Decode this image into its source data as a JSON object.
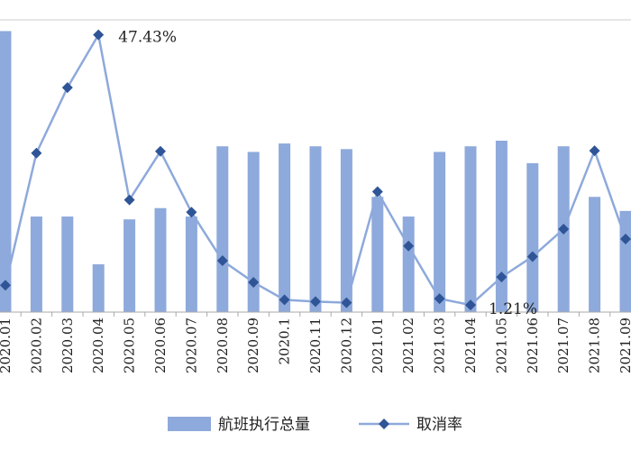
{
  "chart_data": {
    "type": "bar+line",
    "categories": [
      "2020.01",
      "2020.02",
      "2020.03",
      "2020.04",
      "2020.05",
      "2020.06",
      "2020.07",
      "2020.08",
      "2020.09",
      "2020.1",
      "2020.11",
      "2020.12",
      "2021.01",
      "2021.02",
      "2021.03",
      "2021.04",
      "2021.05",
      "2021.06",
      "2021.07",
      "2021.08",
      "2021.09"
    ],
    "series": [
      {
        "name": "航班执行总量",
        "type": "bar",
        "axis": "left",
        "color": "#8EA9DB",
        "values": [
          100,
          34,
          34,
          17,
          33,
          37,
          34,
          59,
          57,
          60,
          59,
          58,
          41,
          34,
          57,
          59,
          61,
          53,
          59,
          41,
          36
        ]
      },
      {
        "name": "取消率",
        "type": "line",
        "axis": "right",
        "color": "#8EA9DB",
        "marker_color": "#2F5597",
        "marker": "diamond",
        "values": [
          4.6,
          27.2,
          38.4,
          47.43,
          19.2,
          27.5,
          17.1,
          8.8,
          5.1,
          2.1,
          1.8,
          1.6,
          20.6,
          11.3,
          2.3,
          1.21,
          6.0,
          9.5,
          14.2,
          27.6,
          12.5
        ]
      }
    ],
    "data_labels": [
      {
        "series": 1,
        "index": 3,
        "text": "47.43%"
      },
      {
        "series": 1,
        "index": 15,
        "text": "1.21%"
      }
    ],
    "ylim_left": [
      0,
      104
    ],
    "ylim_right": [
      0,
      50
    ],
    "xlabel_rotation": -90,
    "legend": {
      "placement": "bottom-center",
      "items": [
        "航班执行总量",
        "取消率"
      ]
    },
    "grid": false
  }
}
